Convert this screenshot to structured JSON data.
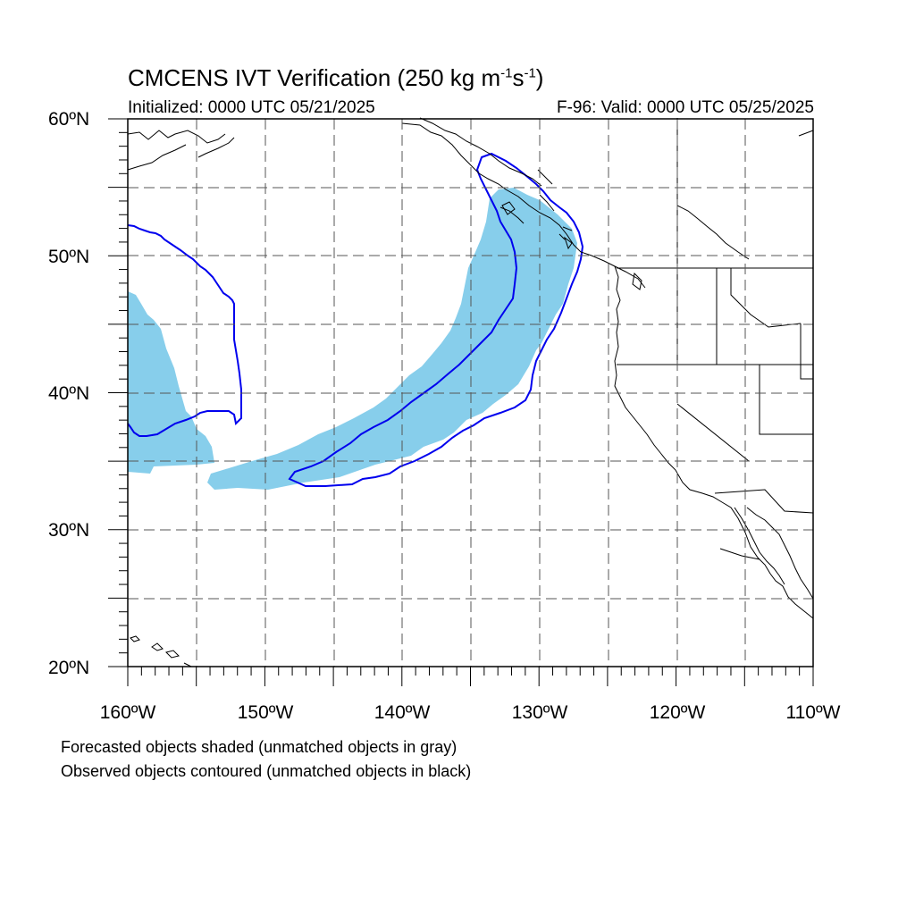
{
  "title": {
    "main": "CMCENS IVT Verification (250 kg m",
    "sup1": "-1",
    "mid": "s",
    "sup2": "-1",
    "end": ")"
  },
  "init_label": "Initialized: 0000 UTC 05/21/2025",
  "valid_label": "F-96: Valid: 0000 UTC 05/25/2025",
  "lat_labels": [
    "60ºN",
    "50ºN",
    "40ºN",
    "30ºN",
    "20ºN"
  ],
  "lon_labels": [
    "160ºW",
    "150ºW",
    "140ºW",
    "130ºW",
    "120ºW",
    "110ºW"
  ],
  "notes": [
    "Forecasted objects shaded (unmatched objects in gray)",
    "Observed objects contoured (unmatched objects in black)"
  ],
  "map": {
    "lon_range": [
      -160,
      -110
    ],
    "lat_range": [
      20,
      60
    ],
    "grid_interval_deg": 5,
    "colors": {
      "forecast_fill": "#87CEEB",
      "observed_contour": "#0000EE",
      "coastline": "#000000",
      "grid": "#555555"
    }
  }
}
